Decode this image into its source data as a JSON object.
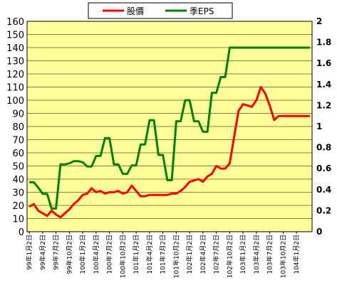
{
  "chart_data": {
    "type": "line",
    "x": [
      "99年1月2日",
      "99年2月2日",
      "99年3月2日",
      "99年4月2日",
      "99年5月2日",
      "99年6月2日",
      "99年7月2日",
      "99年8月2日",
      "99年9月2日",
      "99年10月2日",
      "99年11月2日",
      "99年12月2日",
      "100年1月2日",
      "100年2月2日",
      "100年3月2日",
      "100年4月2日",
      "100年5月2日",
      "100年6月2日",
      "100年7月2日",
      "100年8月2日",
      "100年9月2日",
      "100年10月2日",
      "100年11月2日",
      "100年12月2日",
      "101年1月2日",
      "101年2月2日",
      "101年3月2日",
      "101年4月2日",
      "101年5月2日",
      "101年6月2日",
      "101年7月2日",
      "101年8月2日",
      "101年9月2日",
      "101年10月2日",
      "101年11月2日",
      "101年12月2日",
      "102年1月2日",
      "102年2月2日",
      "102年3月2日",
      "102年4月2日",
      "102年5月2日",
      "102年6月2日",
      "102年7月2日",
      "102年8月2日",
      "102年9月2日",
      "102年10月2日",
      "102年11月2日",
      "102年12月2日",
      "103年1月2日",
      "103年2月2日",
      "103年3月2日",
      "103年4月2日",
      "103年5月2日",
      "103年6月2日",
      "103年7月2日",
      "103年8月2日",
      "103年9月2日",
      "103年10月2日",
      "103年11月2日",
      "103年12月2日",
      "104年1月2日",
      "104年2月2日",
      "104年3月2日",
      "104年4月2日"
    ],
    "x_tick_labels": [
      "99年1月2日",
      "99年4月2日",
      "99年7月2日",
      "99年10月2日",
      "100年1月2日",
      "100年4月2日",
      "100年7月2日",
      "100年10月2日",
      "101年1月2日",
      "101年4月2日",
      "101年7月2日",
      "101年10月2日",
      "102年1月2日",
      "102年4月2日",
      "102年7月2日",
      "102年10月2日",
      "103年1月2日",
      "103年4月2日",
      "103年7月2日",
      "103年10月2日",
      "104年1月2日"
    ],
    "y_left": {
      "ylim": [
        0,
        160
      ],
      "ticks": [
        0,
        10,
        20,
        30,
        40,
        50,
        60,
        70,
        80,
        90,
        100,
        110,
        120,
        130,
        140,
        150,
        160
      ]
    },
    "y_right": {
      "ylim": [
        0,
        2
      ],
      "ticks": [
        "0",
        "0.2",
        "0.4",
        "0.6",
        "0.8",
        "1",
        "1.2",
        "1.4",
        "1.6",
        "1.8",
        "2"
      ]
    },
    "series": [
      {
        "name": "股價",
        "color": "#ff0000",
        "axis": "left",
        "values": [
          19,
          21,
          16,
          14,
          12,
          16,
          13,
          11,
          14,
          17,
          21,
          24,
          28,
          29,
          33,
          30,
          31,
          29,
          30,
          30,
          31,
          29,
          30,
          35,
          31,
          27,
          27,
          28,
          28,
          28,
          28,
          28,
          29,
          29,
          31,
          34,
          38,
          39,
          40,
          38,
          42,
          44,
          50,
          48,
          48,
          52,
          72,
          92,
          97,
          96,
          95,
          100,
          110,
          105,
          96,
          85,
          88,
          88,
          88,
          88,
          88,
          88,
          88,
          88
        ]
      },
      {
        "name": "季EPS",
        "color": "#008000",
        "axis": "right",
        "values": [
          0.47,
          0.47,
          0.42,
          0.36,
          0.36,
          0.22,
          0.22,
          0.64,
          0.64,
          0.65,
          0.67,
          0.67,
          0.66,
          0.62,
          0.62,
          0.72,
          0.72,
          0.89,
          0.89,
          0.64,
          0.64,
          0.55,
          0.55,
          0.63,
          0.63,
          0.83,
          0.83,
          1.06,
          1.06,
          0.73,
          0.73,
          0.49,
          0.49,
          1.05,
          1.05,
          1.25,
          1.25,
          1.05,
          1.05,
          0.95,
          0.95,
          1.32,
          1.32,
          1.47,
          1.47,
          1.75,
          1.75,
          1.75,
          1.75,
          1.75,
          1.75,
          1.75,
          1.75,
          1.75,
          1.75,
          1.75,
          1.75,
          1.75,
          1.75,
          1.75,
          1.75,
          1.75,
          1.75,
          1.75
        ]
      }
    ],
    "grid": true,
    "legend": "top",
    "plot_background": "#ffff99"
  }
}
